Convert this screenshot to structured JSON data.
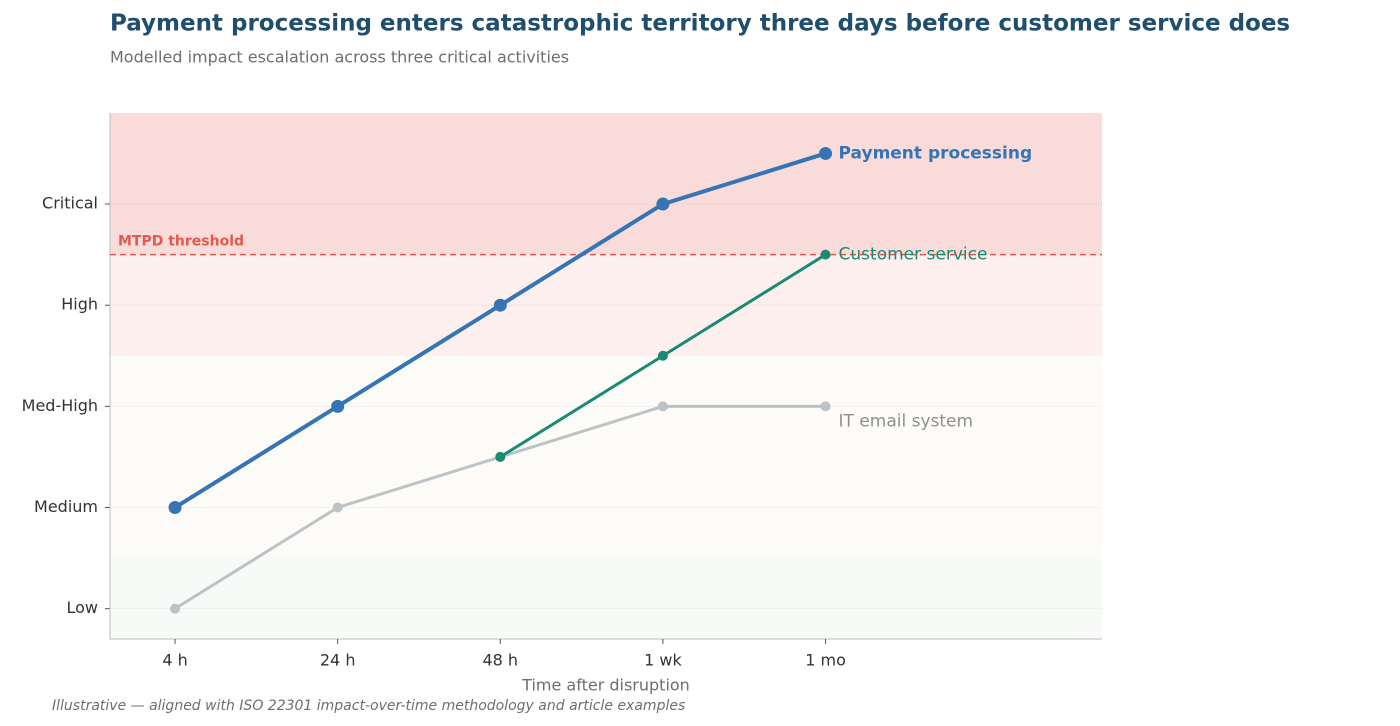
{
  "chart_data": {
    "type": "line",
    "title": "Payment processing enters catastrophic territory three days before customer service does",
    "subtitle": "Modelled impact escalation across three critical activities",
    "x_label": "Time after disruption",
    "footnote": "Illustrative — aligned with ISO 22301 impact-over-time methodology and article examples",
    "categories": [
      "4 h",
      "24 h",
      "48 h",
      "1 wk",
      "1 mo"
    ],
    "xlim": [
      -0.4,
      5.7
    ],
    "ylim": [
      0.7,
      5.9
    ],
    "yticks": [
      {
        "value": 1,
        "label": "Low"
      },
      {
        "value": 2,
        "label": "Medium"
      },
      {
        "value": 3,
        "label": "Med-High"
      },
      {
        "value": 4,
        "label": "High"
      },
      {
        "value": 5,
        "label": "Critical"
      }
    ],
    "grid": true,
    "bands": [
      {
        "from": 0.7,
        "to": 1.5,
        "color": "#f7faf7"
      },
      {
        "from": 1.5,
        "to": 3.5,
        "color": "#fdfbf8"
      },
      {
        "from": 3.5,
        "to": 4.5,
        "color": "#fcefee"
      },
      {
        "from": 4.5,
        "to": 5.9,
        "color": "#f9dcda"
      }
    ],
    "threshold": {
      "label": "MTPD threshold",
      "value": 4.5,
      "color": "#e05a4f"
    },
    "series": [
      {
        "name": "IT email system",
        "color": "#bcc3c7",
        "label_color": "#8f8f8f",
        "values": [
          1,
          2,
          2.5,
          3,
          3
        ]
      },
      {
        "name": "Customer service",
        "color": "#1a8a72",
        "label_color": "#1a8a72",
        "values": [
          null,
          null,
          2.5,
          3.5,
          4.5
        ]
      },
      {
        "name": "Payment processing",
        "color": "#3574b5",
        "label_color": "#3574b5",
        "values": [
          2,
          3,
          4,
          5,
          5.5
        ]
      }
    ]
  }
}
